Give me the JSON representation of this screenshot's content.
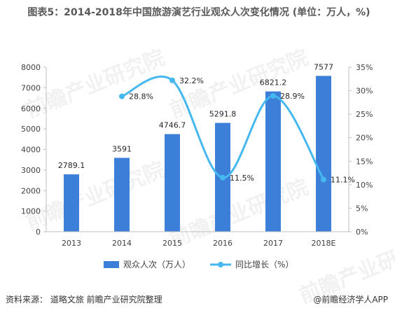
{
  "title": "图表5：2014-2018年中国旅游演艺行业观众人次变化情况 (单位：万人，%)",
  "chart_data": {
    "type": "bar",
    "categories": [
      "2013",
      "2014",
      "2015",
      "2016",
      "2017",
      "2018E"
    ],
    "series": [
      {
        "name": "观众人次（万人）",
        "kind": "bar",
        "axis": "left",
        "color": "#3C7FD8",
        "values": [
          2789.1,
          3591,
          4746.7,
          5291.8,
          6821.2,
          7577
        ],
        "labels": [
          "2789.1",
          "3591",
          "4746.7",
          "5291.8",
          "6821.2",
          "7577"
        ]
      },
      {
        "name": "同比增长（%）",
        "kind": "line",
        "axis": "right",
        "color": "#46B8F0",
        "values": [
          null,
          28.8,
          32.2,
          11.5,
          28.9,
          11.1
        ],
        "labels": [
          "",
          "28.8%",
          "32.2%",
          "11.5%",
          "28.9%",
          "11.1%"
        ]
      }
    ],
    "y_left": {
      "min": 0,
      "max": 8000,
      "ticks": [
        "0",
        "1000",
        "2000",
        "3000",
        "4000",
        "5000",
        "6000",
        "7000",
        "8000"
      ]
    },
    "y_right": {
      "min": 0,
      "max": 35,
      "ticks": [
        "0%",
        "5%",
        "10%",
        "15%",
        "20%",
        "25%",
        "30%",
        "35%"
      ]
    },
    "grid": false,
    "legend_position": "bottom"
  },
  "footer": {
    "source": "资料来源：  道略文旅 前瞻产业研究院整理",
    "credit": "@前瞻经济学人APP"
  },
  "watermark": {
    "text": "前瞻产业研究院",
    "text2": "前瞻产业研究院"
  }
}
